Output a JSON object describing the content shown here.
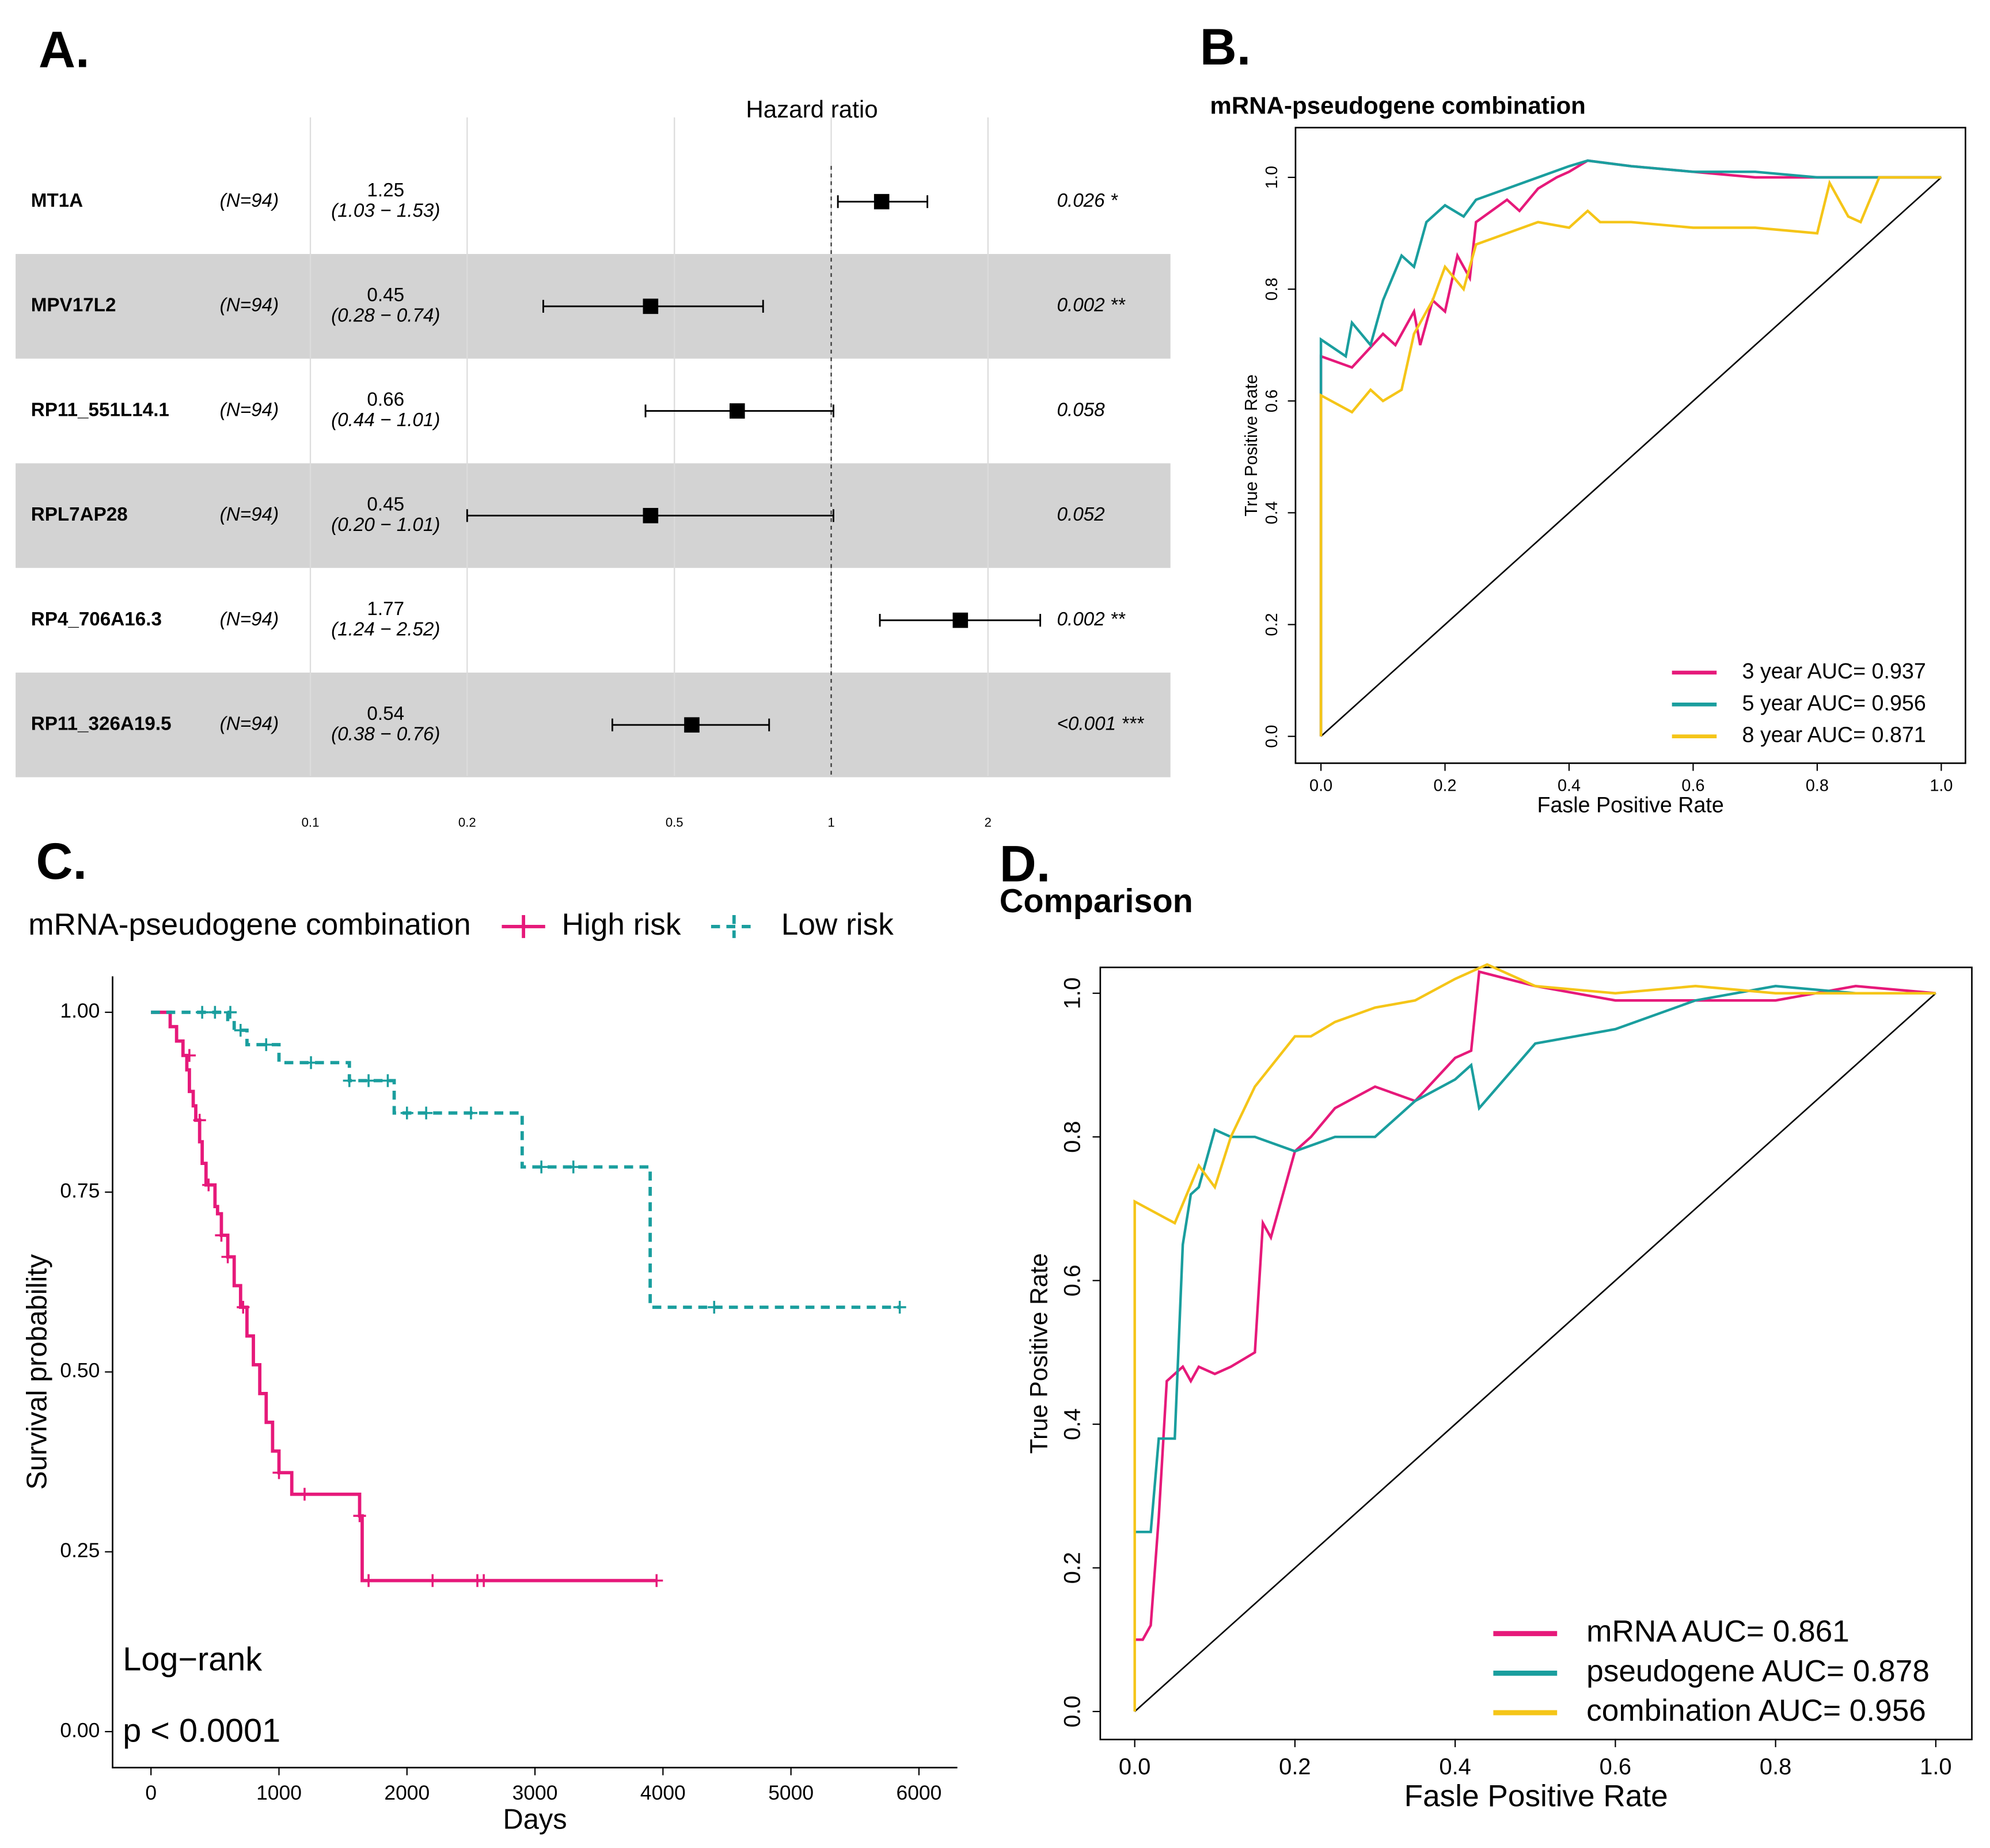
{
  "chart_data": [
    {
      "type": "forest",
      "panel_label": "A.",
      "title": "Hazard ratio",
      "categories": [
        "MT1A",
        "MPV17L2",
        "RP11_551L14.1",
        "RPL7AP28",
        "RP4_706A16.3",
        "RP11_326A19.5"
      ],
      "n_labels": [
        "(N=94)",
        "(N=94)",
        "(N=94)",
        "(N=94)",
        "(N=94)",
        "(N=94)"
      ],
      "values": [
        1.25,
        0.45,
        0.66,
        0.45,
        1.77,
        0.54
      ],
      "ci_lower": [
        1.03,
        0.28,
        0.44,
        0.2,
        1.24,
        0.38
      ],
      "ci_upper": [
        1.53,
        0.74,
        1.01,
        1.01,
        2.52,
        0.76
      ],
      "ci_labels": [
        "(1.03 − 1.53)",
        "(0.28 − 0.74)",
        "(0.44 − 1.01)",
        "(0.20 − 1.01)",
        "(1.24 − 2.52)",
        "(0.38 − 0.76)"
      ],
      "p_labels": [
        "0.026 *",
        "0.002 **",
        "0.058",
        "0.052",
        "0.002 **",
        "<0.001 ***"
      ],
      "xlim": [
        0.1,
        2
      ],
      "xticks": [
        0.1,
        0.2,
        0.5,
        1,
        2
      ],
      "log_x": true,
      "reference": 1,
      "grid": true,
      "color": "#000000"
    },
    {
      "type": "line",
      "panel_label": "B.",
      "title": "mRNA-pseudogene combination",
      "x_label": "Fasle Positive Rate",
      "y_label": "True Positive Rate",
      "legend": "bottom-right",
      "diagonal": true,
      "xlim": [
        -0.041,
        1.039
      ],
      "ylim": [
        -0.048,
        1.089
      ],
      "xticks": [
        {
          "value": 0,
          "label": "0.0"
        },
        {
          "value": 0.2,
          "label": "0.2"
        },
        {
          "value": 0.4,
          "label": "0.4"
        },
        {
          "value": 0.6,
          "label": "0.6"
        },
        {
          "value": 0.8,
          "label": "0.8"
        },
        {
          "value": 1,
          "label": "1.0"
        }
      ],
      "yticks": [
        {
          "value": 0,
          "label": "0.0"
        },
        {
          "value": 0.2,
          "label": "0.2"
        },
        {
          "value": 0.4,
          "label": "0.4"
        },
        {
          "value": 0.6,
          "label": "0.6"
        },
        {
          "value": 0.8,
          "label": "0.8"
        },
        {
          "value": 1,
          "label": "1.0"
        }
      ],
      "series": [
        {
          "name": "3 year AUC= 0.937",
          "color": "#e6197a",
          "x": [
            0,
            0,
            0.05,
            0.1,
            0.12,
            0.15,
            0.16,
            0.18,
            0.2,
            0.22,
            0.24,
            0.25,
            0.3,
            0.32,
            0.35,
            0.38,
            0.4,
            0.43,
            0.5,
            0.6,
            0.7,
            0.8,
            0.9,
            1
          ],
          "values": [
            0,
            0.68,
            0.66,
            0.72,
            0.7,
            0.76,
            0.7,
            0.78,
            0.76,
            0.86,
            0.82,
            0.92,
            0.96,
            0.94,
            0.98,
            1,
            1.01,
            1.03,
            1.02,
            1.01,
            1,
            1,
            1,
            1
          ]
        },
        {
          "name": "5 year AUC= 0.956",
          "color": "#1a9e9e",
          "x": [
            0,
            0,
            0.04,
            0.05,
            0.08,
            0.1,
            0.13,
            0.15,
            0.17,
            0.2,
            0.23,
            0.25,
            0.3,
            0.35,
            0.4,
            0.43,
            0.5,
            0.6,
            0.7,
            0.8,
            0.85,
            0.9,
            1
          ],
          "values": [
            0,
            0.71,
            0.68,
            0.74,
            0.7,
            0.78,
            0.86,
            0.84,
            0.92,
            0.95,
            0.93,
            0.96,
            0.98,
            1,
            1.02,
            1.03,
            1.02,
            1.01,
            1.01,
            1,
            1,
            1,
            1
          ]
        },
        {
          "name": "8 year AUC= 0.871",
          "color": "#f5c518",
          "x": [
            0,
            0,
            0.05,
            0.08,
            0.1,
            0.13,
            0.15,
            0.18,
            0.2,
            0.23,
            0.25,
            0.3,
            0.35,
            0.4,
            0.43,
            0.45,
            0.5,
            0.6,
            0.7,
            0.8,
            0.82,
            0.85,
            0.87,
            0.9,
            1
          ],
          "values": [
            0,
            0.61,
            0.58,
            0.62,
            0.6,
            0.62,
            0.72,
            0.78,
            0.84,
            0.8,
            0.88,
            0.9,
            0.92,
            0.91,
            0.94,
            0.92,
            0.92,
            0.91,
            0.91,
            0.9,
            0.99,
            0.93,
            0.92,
            1,
            1
          ]
        }
      ]
    },
    {
      "type": "step",
      "panel_label": "C.",
      "legend_title": "mRNA-pseudogene combination",
      "x_label": "Days",
      "y_label": "Survival probability",
      "annotations": [
        "Log−rank",
        "p < 0.0001"
      ],
      "xlim": [
        -300,
        6300
      ],
      "ylim": [
        -0.05,
        1.05
      ],
      "xticks": [
        0,
        1000,
        2000,
        3000,
        4000,
        5000,
        6000
      ],
      "yticks": [
        {
          "value": 0,
          "label": "0.00"
        },
        {
          "value": 0.25,
          "label": "0.25"
        },
        {
          "value": 0.5,
          "label": "0.50"
        },
        {
          "value": 0.75,
          "label": "0.75"
        },
        {
          "value": 1,
          "label": "1.00"
        }
      ],
      "series": [
        {
          "name": "High risk",
          "color": "#e6197a",
          "dashed": false,
          "x": [
            0,
            100,
            150,
            200,
            250,
            280,
            300,
            330,
            350,
            380,
            400,
            430,
            500,
            520,
            550,
            600,
            650,
            700,
            750,
            800,
            850,
            900,
            950,
            1000,
            1100,
            1630,
            1650,
            3950
          ],
          "values": [
            1,
            1,
            0.98,
            0.96,
            0.94,
            0.92,
            0.89,
            0.87,
            0.85,
            0.82,
            0.79,
            0.76,
            0.73,
            0.72,
            0.69,
            0.66,
            0.62,
            0.59,
            0.55,
            0.51,
            0.47,
            0.43,
            0.39,
            0.36,
            0.33,
            0.3,
            0.21,
            0.21
          ],
          "censor_x": [
            300,
            380,
            450,
            550,
            600,
            720,
            1000,
            1200,
            1630,
            1700,
            2200,
            2550,
            2600,
            3950
          ],
          "censor_values": [
            0.94,
            0.85,
            0.76,
            0.69,
            0.66,
            0.59,
            0.36,
            0.33,
            0.3,
            0.21,
            0.21,
            0.21,
            0.21,
            0.21
          ]
        },
        {
          "name": "Low risk",
          "color": "#1a9e9e",
          "dashed": true,
          "x": [
            0,
            600,
            650,
            750,
            1000,
            1550,
            1900,
            2900,
            3900,
            5850
          ],
          "values": [
            1,
            0.99,
            0.975,
            0.955,
            0.93,
            0.905,
            0.86,
            0.785,
            0.59,
            0.59
          ],
          "censor_x": [
            400,
            500,
            620,
            700,
            900,
            1250,
            1550,
            1700,
            1850,
            2000,
            2150,
            2500,
            3050,
            3300,
            4400,
            5850
          ],
          "censor_values": [
            1,
            1,
            1,
            0.975,
            0.955,
            0.93,
            0.905,
            0.905,
            0.905,
            0.86,
            0.86,
            0.86,
            0.785,
            0.785,
            0.59,
            0.59
          ]
        }
      ]
    },
    {
      "type": "line",
      "panel_label": "D.",
      "title": "Comparison",
      "x_label": "Fasle Positive Rate",
      "y_label": "True Positive Rate",
      "legend": "bottom-right",
      "diagonal": true,
      "xlim": [
        -0.043,
        1.045
      ],
      "ylim": [
        -0.039,
        1.036
      ],
      "xticks": [
        {
          "value": 0,
          "label": "0.0"
        },
        {
          "value": 0.2,
          "label": "0.2"
        },
        {
          "value": 0.4,
          "label": "0.4"
        },
        {
          "value": 0.6,
          "label": "0.6"
        },
        {
          "value": 0.8,
          "label": "0.8"
        },
        {
          "value": 1,
          "label": "1.0"
        }
      ],
      "yticks": [
        {
          "value": 0,
          "label": "0.0"
        },
        {
          "value": 0.2,
          "label": "0.2"
        },
        {
          "value": 0.4,
          "label": "0.4"
        },
        {
          "value": 0.6,
          "label": "0.6"
        },
        {
          "value": 0.8,
          "label": "0.8"
        },
        {
          "value": 1,
          "label": "1.0"
        }
      ],
      "series": [
        {
          "name": "mRNA AUC= 0.861",
          "color": "#e6197a",
          "x": [
            0,
            0.01,
            0.02,
            0.03,
            0.04,
            0.05,
            0.06,
            0.07,
            0.08,
            0.1,
            0.12,
            0.15,
            0.16,
            0.17,
            0.2,
            0.22,
            0.25,
            0.3,
            0.35,
            0.4,
            0.42,
            0.43,
            0.5,
            0.6,
            0.7,
            0.8,
            0.9,
            1
          ],
          "values": [
            0.1,
            0.1,
            0.12,
            0.27,
            0.46,
            0.47,
            0.48,
            0.46,
            0.48,
            0.47,
            0.48,
            0.5,
            0.68,
            0.66,
            0.78,
            0.8,
            0.84,
            0.87,
            0.85,
            0.91,
            0.92,
            1.03,
            1.01,
            0.99,
            0.99,
            0.99,
            1.01,
            1
          ]
        },
        {
          "name": "pseudogene AUC= 0.878",
          "color": "#1a9e9e",
          "x": [
            0,
            0.02,
            0.03,
            0.05,
            0.06,
            0.07,
            0.08,
            0.1,
            0.12,
            0.15,
            0.2,
            0.25,
            0.3,
            0.35,
            0.4,
            0.42,
            0.43,
            0.5,
            0.6,
            0.7,
            0.8,
            0.9,
            1
          ],
          "values": [
            0.25,
            0.25,
            0.38,
            0.38,
            0.65,
            0.72,
            0.73,
            0.81,
            0.8,
            0.8,
            0.78,
            0.8,
            0.8,
            0.85,
            0.88,
            0.9,
            0.84,
            0.93,
            0.95,
            0.99,
            1.01,
            1,
            1
          ]
        },
        {
          "name": "combination AUC= 0.956",
          "color": "#f5c518",
          "x": [
            0,
            0,
            0.05,
            0.08,
            0.1,
            0.12,
            0.15,
            0.2,
            0.22,
            0.25,
            0.3,
            0.35,
            0.4,
            0.44,
            0.5,
            0.6,
            0.7,
            0.8,
            0.9,
            1
          ],
          "values": [
            0,
            0.71,
            0.68,
            0.76,
            0.73,
            0.8,
            0.87,
            0.94,
            0.94,
            0.96,
            0.98,
            0.99,
            1.02,
            1.04,
            1.01,
            1,
            1.01,
            1,
            1,
            1
          ]
        }
      ]
    }
  ]
}
